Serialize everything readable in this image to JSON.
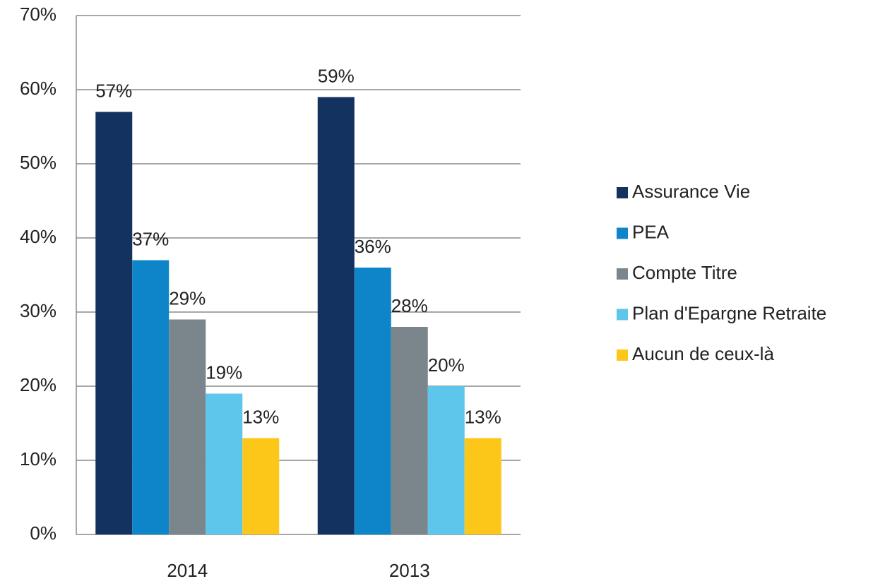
{
  "chart_data": {
    "type": "bar",
    "categories": [
      "2014",
      "2013"
    ],
    "series": [
      {
        "name": "Assurance Vie",
        "color": "#14325f",
        "values": [
          57,
          59
        ],
        "value_labels": [
          "57%",
          "59%"
        ]
      },
      {
        "name": "PEA",
        "color": "#0f85c9",
        "values": [
          37,
          36
        ],
        "value_labels": [
          "37%",
          "36%"
        ]
      },
      {
        "name": "Compte Titre",
        "color": "#7a868c",
        "values": [
          29,
          28
        ],
        "value_labels": [
          "29%",
          "28%"
        ]
      },
      {
        "name": "Plan d'Epargne Retraite",
        "color": "#5ec6ea",
        "values": [
          19,
          20
        ],
        "value_labels": [
          "19%",
          "20%"
        ]
      },
      {
        "name": "Aucun de ceux-là",
        "color": "#fdc71a",
        "values": [
          13,
          13
        ],
        "value_labels": [
          "13%",
          "13%"
        ]
      }
    ],
    "ylim": [
      0,
      70
    ],
    "yticks": [
      {
        "value": 0,
        "label": "0%"
      },
      {
        "value": 10,
        "label": "10%"
      },
      {
        "value": 20,
        "label": "20%"
      },
      {
        "value": 30,
        "label": "30%"
      },
      {
        "value": 40,
        "label": "40%"
      },
      {
        "value": 50,
        "label": "50%"
      },
      {
        "value": 60,
        "label": "60%"
      },
      {
        "value": 70,
        "label": "70%"
      }
    ],
    "grid": true,
    "legend": "right"
  }
}
